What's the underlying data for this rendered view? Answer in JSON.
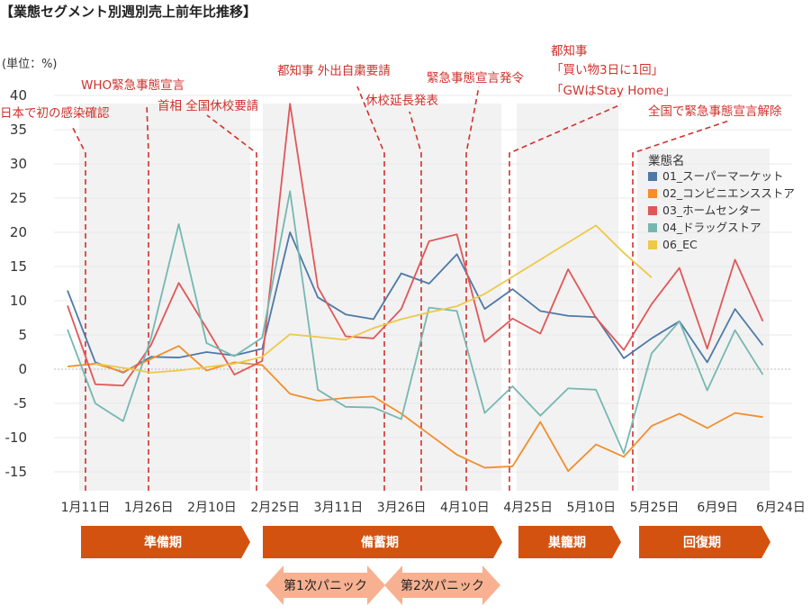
{
  "title": "【業態セグメント別週別売上前年比推移】",
  "unit_label": "(単位：%)",
  "chart_data": {
    "type": "line",
    "ylim": [
      -18,
      40
    ],
    "yticks": [
      -15,
      -10,
      -5,
      0,
      5,
      10,
      15,
      20,
      25,
      30,
      35,
      40
    ],
    "x_count": 26,
    "x_tick_labels": [
      {
        "i": 1,
        "label": "1月11日"
      },
      {
        "i": 4,
        "label": "1月26日"
      },
      {
        "i": 7,
        "label": "2月10日"
      },
      {
        "i": 10,
        "label": "2月25日"
      },
      {
        "i": 13,
        "label": "3月11日"
      },
      {
        "i": 16,
        "label": "3月26日"
      },
      {
        "i": 19,
        "label": "4月10日"
      },
      {
        "i": 22,
        "label": "4月25日"
      },
      {
        "i": 25,
        "label": "5月10日"
      },
      {
        "i": 28,
        "label": "5月25日"
      },
      {
        "i": 31,
        "label": "6月9日"
      },
      {
        "i": 34,
        "label": "6月24日"
      }
    ],
    "legend_title": "業態名",
    "series": [
      {
        "name": "01_スーパーマーケット",
        "color": "#4e79a7",
        "values": [
          [
            0,
            11.5
          ],
          [
            1,
            1
          ],
          [
            2,
            -0.5
          ],
          [
            3,
            1.8
          ],
          [
            4,
            1.7
          ],
          [
            5,
            2.5
          ],
          [
            6,
            2
          ],
          [
            7,
            3
          ],
          [
            8,
            20
          ],
          [
            9,
            10.5
          ],
          [
            10,
            8
          ],
          [
            11,
            7.3
          ],
          [
            12,
            14
          ],
          [
            13,
            12.5
          ],
          [
            14,
            16.8
          ],
          [
            15,
            8.8
          ],
          [
            16,
            11.7
          ],
          [
            17,
            8.5
          ],
          [
            18,
            7.8
          ],
          [
            19,
            7.6
          ],
          [
            20,
            1.6
          ],
          [
            21,
            4.5
          ],
          [
            22,
            7
          ],
          [
            23,
            1
          ],
          [
            24,
            8.8
          ],
          [
            25,
            3.5
          ]
        ]
      },
      {
        "name": "02_コンビニエンスストア",
        "color": "#f28e2b",
        "values": [
          [
            0,
            0.4
          ],
          [
            1,
            0.8
          ],
          [
            2,
            -0.4
          ],
          [
            3,
            1.5
          ],
          [
            4,
            3.4
          ],
          [
            5,
            -0.2
          ],
          [
            6,
            1
          ],
          [
            7,
            0.6
          ],
          [
            8,
            -3.6
          ],
          [
            9,
            -4.6
          ],
          [
            10,
            -4.2
          ],
          [
            11,
            -4
          ],
          [
            12,
            -6.5
          ],
          [
            13,
            -9.5
          ],
          [
            14,
            -12.5
          ],
          [
            15,
            -14.4
          ],
          [
            16,
            -14.2
          ],
          [
            17,
            -7.7
          ],
          [
            18,
            -14.9
          ],
          [
            19,
            -11
          ],
          [
            20,
            -12.8
          ],
          [
            21,
            -8.3
          ],
          [
            22,
            -6.5
          ],
          [
            23,
            -8.6
          ],
          [
            24,
            -6.4
          ],
          [
            25,
            -7
          ]
        ]
      },
      {
        "name": "03_ホームセンター",
        "color": "#e15759",
        "values": [
          [
            0,
            9.3
          ],
          [
            1,
            -2.2
          ],
          [
            2,
            -2.4
          ],
          [
            3,
            3.5
          ],
          [
            4,
            12.6
          ],
          [
            5,
            6
          ],
          [
            6,
            -0.8
          ],
          [
            7,
            1.2
          ],
          [
            8,
            38.8
          ],
          [
            9,
            12
          ],
          [
            10,
            4.8
          ],
          [
            11,
            4.5
          ],
          [
            12,
            8.8
          ],
          [
            13,
            18.7
          ],
          [
            14,
            19.7
          ],
          [
            15,
            4
          ],
          [
            16,
            7.4
          ],
          [
            17,
            5.2
          ],
          [
            18,
            14.6
          ],
          [
            19,
            7.5
          ],
          [
            20,
            2.8
          ],
          [
            21,
            9.5
          ],
          [
            22,
            14.8
          ],
          [
            23,
            3
          ],
          [
            24,
            16
          ],
          [
            25,
            7
          ]
        ]
      },
      {
        "name": "04_ドラッグストア",
        "color": "#76b7b2",
        "values": [
          [
            0,
            5.8
          ],
          [
            1,
            -5
          ],
          [
            2,
            -7.6
          ],
          [
            3,
            4.5
          ],
          [
            4,
            21.2
          ],
          [
            5,
            3.8
          ],
          [
            6,
            1.9
          ],
          [
            7,
            4.6
          ],
          [
            8,
            26
          ],
          [
            9,
            -3
          ],
          [
            10,
            -5.5
          ],
          [
            11,
            -5.6
          ],
          [
            12,
            -7.3
          ],
          [
            13,
            9
          ],
          [
            14,
            8.5
          ],
          [
            15,
            -6.4
          ],
          [
            16,
            -2.5
          ],
          [
            17,
            -6.8
          ],
          [
            18,
            -2.8
          ],
          [
            19,
            -3
          ],
          [
            20,
            -12.3
          ],
          [
            21,
            2.3
          ],
          [
            22,
            7
          ],
          [
            23,
            -3.1
          ],
          [
            24,
            5.7
          ],
          [
            25,
            -0.8
          ]
        ]
      },
      {
        "name": "06_EC",
        "color": "#edc948",
        "values": [
          [
            1,
            0.8
          ],
          [
            2,
            0.2
          ],
          [
            3,
            -0.5
          ],
          [
            4,
            -0.2
          ],
          [
            5,
            0.3
          ],
          [
            6,
            0.8
          ],
          [
            7,
            1.8
          ],
          [
            8,
            5.1
          ],
          [
            9,
            4.7
          ],
          [
            10,
            4.3
          ],
          [
            11,
            6
          ],
          [
            12,
            7.3
          ],
          [
            13,
            8.3
          ],
          [
            14,
            9.2
          ],
          [
            15,
            11
          ],
          [
            16,
            13.5
          ],
          [
            17,
            16
          ],
          [
            18,
            18.5
          ],
          [
            19,
            21
          ],
          [
            20,
            17
          ],
          [
            21,
            13.4
          ]
        ]
      }
    ],
    "annotations": [
      {
        "text": "日本で初の感染確認",
        "x": 0.6
      },
      {
        "text": "WHO緊急事態宣言",
        "x": 3.5
      },
      {
        "text": "首相 全国休校要請",
        "x": 6.5
      },
      {
        "text": "都知事 外出自粛要請",
        "x": 10.5
      },
      {
        "text": "休校延長発表",
        "x": 11.5
      },
      {
        "text": "緊急事態宣言発令",
        "x": 12.6
      },
      {
        "text": "都知事",
        "x": 15.6
      },
      {
        "text": "「買い物3日に1回」",
        "x": 15.6
      },
      {
        "text": "「GWはStay Home」",
        "x": 15.6
      },
      {
        "text": "全国で緊急事態宣言解除",
        "x": 19.5
      }
    ],
    "phases": [
      {
        "label": "準備期",
        "from": -1,
        "to": 6.5
      },
      {
        "label": "備蓄期",
        "from": 6.5,
        "to": 15
      },
      {
        "label": "巣籠期",
        "from": 15.5,
        "to": 19.3
      },
      {
        "label": "回復期",
        "from": 19.8,
        "to": 25.8
      }
    ],
    "panics": [
      {
        "label": "第1次パニック"
      },
      {
        "label": "第2次パニック"
      }
    ]
  }
}
